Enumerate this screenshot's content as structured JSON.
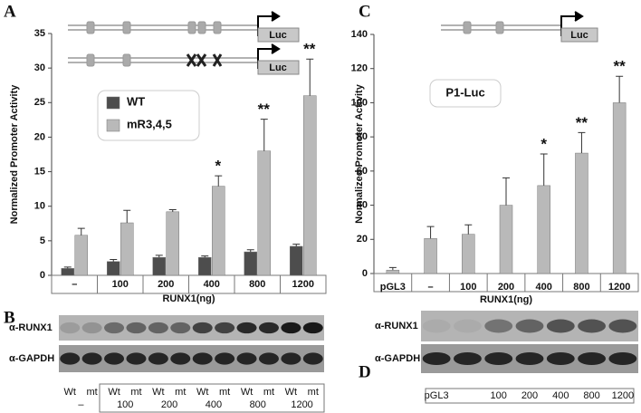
{
  "chart_data": [
    {
      "type": "bar",
      "panel": "A",
      "ylabel": "Normalized Promoter Activity",
      "xlabel": "RUNX1(ng)",
      "categories": [
        "–",
        "100",
        "200",
        "400",
        "800",
        "1200"
      ],
      "series": [
        {
          "name": "WT",
          "color": "#4d4d4d",
          "values": [
            1.0,
            2.0,
            2.6,
            2.6,
            3.4,
            4.2
          ],
          "errors": [
            0.2,
            0.3,
            0.3,
            0.2,
            0.3,
            0.3
          ]
        },
        {
          "name": "mR3,4,5",
          "color": "#b9b9b9",
          "values": [
            5.8,
            7.6,
            9.2,
            12.9,
            18.0,
            26.0
          ],
          "errors": [
            1.0,
            1.8,
            0.3,
            1.5,
            4.6,
            5.3
          ]
        }
      ],
      "significance": [
        null,
        null,
        null,
        "*",
        "**",
        "**"
      ],
      "ylim": [
        0,
        35
      ],
      "yticks": [
        0,
        5,
        10,
        15,
        20,
        25,
        30,
        35
      ],
      "legend": "upper left"
    },
    {
      "type": "bar",
      "panel": "C",
      "annotation": "P1-Luc",
      "ylabel": "Normalized Promoter Activity",
      "xlabel": "RUNX1(ng)",
      "categories": [
        "pGL3",
        "–",
        "100",
        "200",
        "400",
        "800",
        "1200"
      ],
      "series": [
        {
          "color": "#b9b9b9",
          "values": [
            2,
            20.5,
            23,
            40,
            51.5,
            70.5,
            100
          ],
          "errors": [
            1.5,
            7,
            5.5,
            16,
            18.5,
            12,
            15.5
          ]
        }
      ],
      "significance": [
        null,
        null,
        null,
        null,
        "*",
        "**",
        "**"
      ],
      "ylim": [
        0,
        140
      ],
      "yticks": [
        0,
        20,
        40,
        60,
        80,
        100,
        120,
        140
      ]
    }
  ],
  "diagram": {
    "reporter": "Luc"
  },
  "blots": [
    {
      "panel": "B",
      "antibodies": [
        "α-RUNX1",
        "α-GAPDH"
      ],
      "lanes": [
        "Wt",
        "mt",
        "Wt",
        "mt",
        "Wt",
        "mt",
        "Wt",
        "mt",
        "Wt",
        "mt",
        "Wt",
        "mt"
      ],
      "groups": [
        "–",
        "100",
        "200",
        "400",
        "800",
        "1200"
      ]
    },
    {
      "panel": "D",
      "antibodies": [
        "α-RUNX1",
        "α-GAPDH"
      ],
      "lanes": [
        "pGL3",
        null,
        "100",
        "200",
        "400",
        "800",
        "1200"
      ]
    }
  ]
}
